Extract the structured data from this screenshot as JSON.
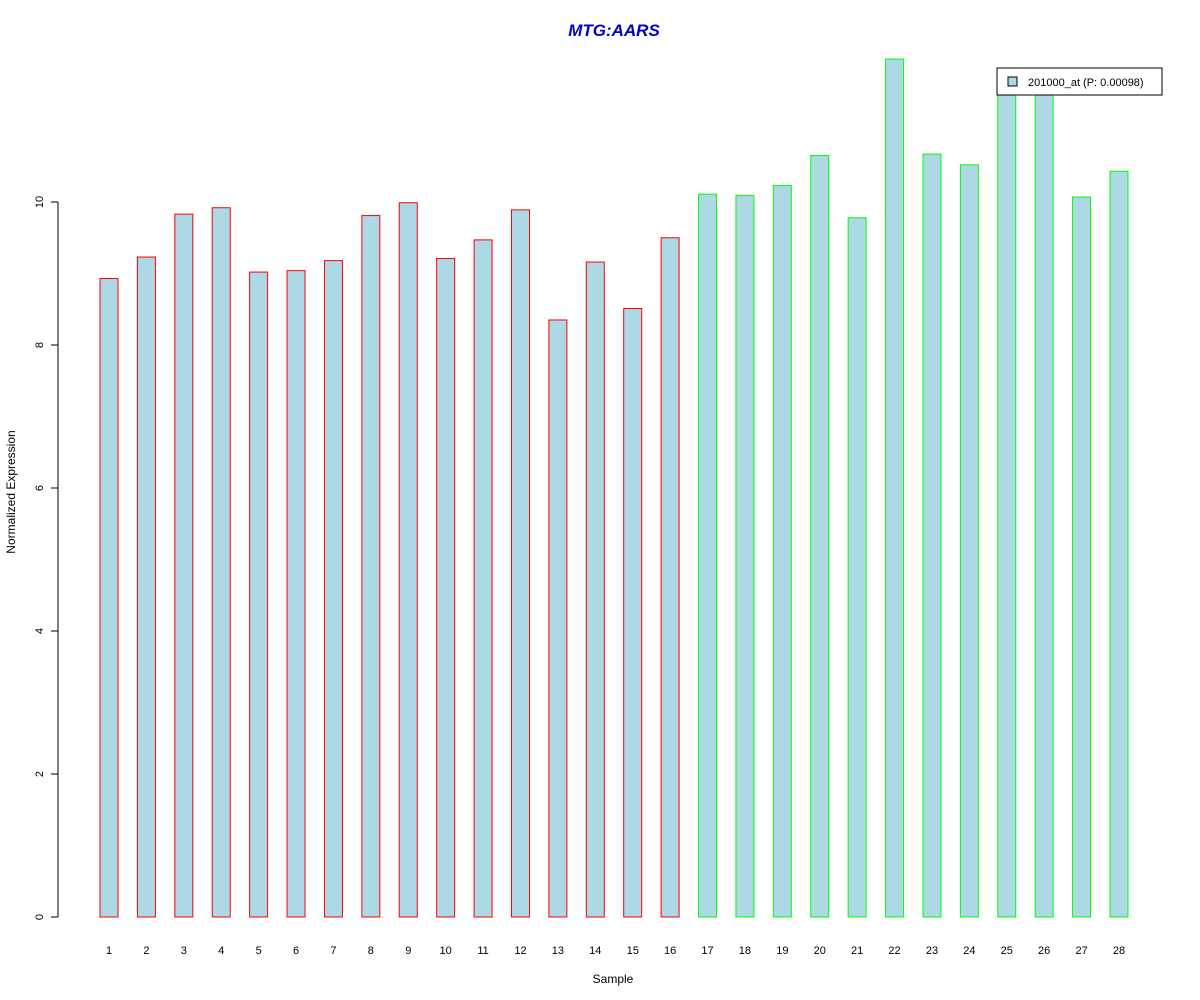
{
  "chart_data": {
    "type": "bar",
    "title": "MTG:AARS",
    "xlabel": "Sample",
    "ylabel": "Normalized Expression",
    "categories": [
      "1",
      "2",
      "3",
      "4",
      "5",
      "6",
      "7",
      "8",
      "9",
      "10",
      "11",
      "12",
      "13",
      "14",
      "15",
      "16",
      "17",
      "18",
      "19",
      "20",
      "21",
      "22",
      "23",
      "24",
      "25",
      "26",
      "27",
      "28"
    ],
    "values": [
      8.93,
      9.23,
      9.83,
      9.92,
      9.02,
      9.04,
      9.18,
      9.81,
      9.99,
      9.21,
      9.47,
      9.89,
      8.35,
      9.16,
      8.51,
      9.5,
      10.11,
      10.09,
      10.23,
      10.65,
      9.78,
      12.0,
      10.67,
      10.52,
      11.55,
      11.55,
      10.07,
      10.43
    ],
    "groups": [
      1,
      1,
      1,
      1,
      1,
      1,
      1,
      1,
      1,
      1,
      1,
      1,
      1,
      1,
      1,
      1,
      2,
      2,
      2,
      2,
      2,
      2,
      2,
      2,
      2,
      2,
      2,
      2
    ],
    "yticks": [
      "0",
      "2",
      "4",
      "6",
      "8",
      "10"
    ],
    "ylim": [
      0,
      12
    ],
    "grid": false,
    "legend": {
      "position": "top-right",
      "entries": [
        {
          "label": "201000_at (P: 0.00098)",
          "color": "#add8e6"
        }
      ]
    },
    "colors": {
      "fill": "#add8e6",
      "group1_border": "#ff0000",
      "group2_border": "#00ff00",
      "title": "#0000cd"
    }
  }
}
